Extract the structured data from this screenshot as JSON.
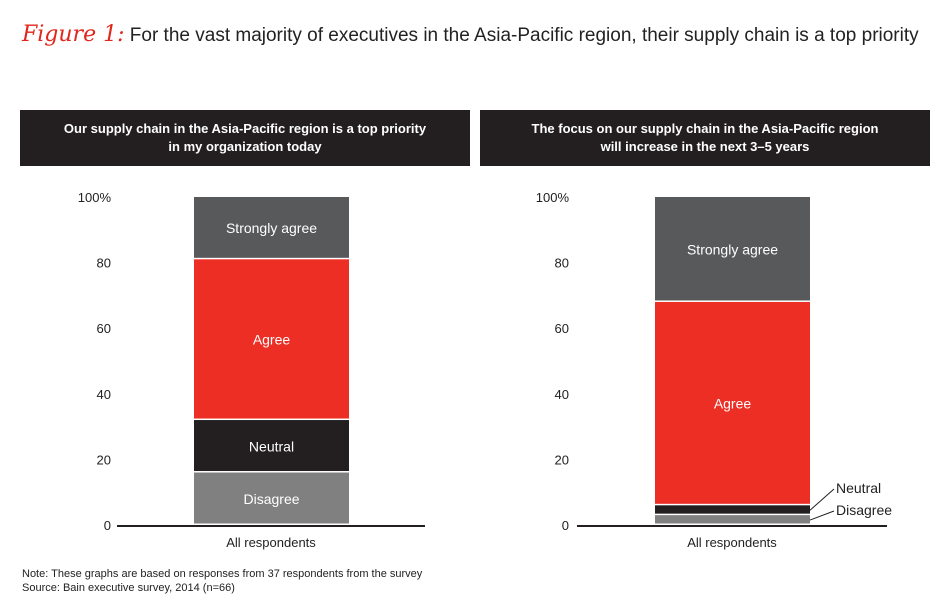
{
  "figure": {
    "label": "Figure 1:",
    "title": "For the vast majority of executives in the Asia-Pacific region, their supply chain is a top priority"
  },
  "colors": {
    "strongly_agree": "#58595b",
    "agree": "#ed2e24",
    "neutral": "#231f20",
    "disagree": "#808080",
    "header_bg": "#231f20",
    "accent": "#e1261c"
  },
  "chart_data": [
    {
      "type": "bar",
      "stacked": true,
      "title_lines": [
        "Our supply chain in the Asia-Pacific region is a top priority",
        "in my organization today"
      ],
      "categories": [
        "All respondents"
      ],
      "ylim": [
        0,
        100
      ],
      "yticks": [
        "100%",
        "80",
        "60",
        "40",
        "20",
        "0"
      ],
      "series": [
        {
          "name": "Disagree",
          "values": [
            16
          ]
        },
        {
          "name": "Neutral",
          "values": [
            16
          ]
        },
        {
          "name": "Agree",
          "values": [
            49
          ]
        },
        {
          "name": "Strongly agree",
          "values": [
            19
          ]
        }
      ]
    },
    {
      "type": "bar",
      "stacked": true,
      "title_lines": [
        "The focus on our supply chain in the Asia-Pacific region",
        "will increase in the next 3–5 years"
      ],
      "categories": [
        "All respondents"
      ],
      "ylim": [
        0,
        100
      ],
      "yticks": [
        "100%",
        "80",
        "60",
        "40",
        "20",
        "0"
      ],
      "series": [
        {
          "name": "Disagree",
          "values": [
            3
          ]
        },
        {
          "name": "Neutral",
          "values": [
            3
          ]
        },
        {
          "name": "Agree",
          "values": [
            62
          ]
        },
        {
          "name": "Strongly agree",
          "values": [
            32
          ]
        }
      ]
    }
  ],
  "notes": {
    "note": "Note: These graphs are based on responses from 37 respondents from the survey",
    "source": "Source: Bain executive survey, 2014 (n=66)"
  }
}
